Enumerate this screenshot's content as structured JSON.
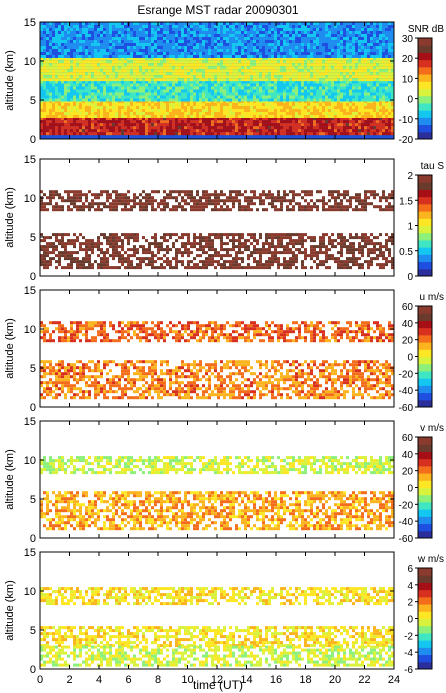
{
  "chart_data": {
    "type": "heatmap",
    "title": "Esrange MST radar 20090301",
    "xlabel": "time (UT)",
    "xlim": [
      0,
      24
    ],
    "x_ticks": [
      0,
      2,
      4,
      6,
      8,
      10,
      12,
      14,
      16,
      18,
      20,
      22,
      24
    ],
    "colormap": [
      "#2b2f9c",
      "#1f4fe0",
      "#1f8cf0",
      "#14c7f0",
      "#3fe6c4",
      "#8cf07a",
      "#d9f23c",
      "#fde725",
      "#fbb41e",
      "#f46d1b",
      "#d7301f",
      "#a50f15",
      "#6a3b2c",
      "#8b3a2e"
    ],
    "panels": [
      {
        "ylabel": "altitude (km)",
        "ylim": [
          0,
          15
        ],
        "y_ticks": [
          0,
          5,
          10,
          15
        ],
        "colorbar_label": "SNR dB",
        "clim": [
          -20,
          30
        ],
        "colorbar_ticks": [
          -20,
          -10,
          0,
          10,
          20,
          30
        ],
        "background": "#2150d8",
        "layers": [
          {
            "alt_lo": 0.5,
            "alt_hi": 2.8,
            "value": 20
          },
          {
            "alt_lo": 2.8,
            "alt_hi": 5.0,
            "value": 8
          },
          {
            "alt_lo": 5.0,
            "alt_hi": 7.5,
            "value": -5
          },
          {
            "alt_lo": 7.5,
            "alt_hi": 10.5,
            "value": 4
          },
          {
            "alt_lo": 10.5,
            "alt_hi": 15,
            "value": -12
          }
        ]
      },
      {
        "ylabel": "altitude (km)",
        "ylim": [
          0,
          15
        ],
        "y_ticks": [
          0,
          5,
          10,
          15
        ],
        "colorbar_label": "tau S",
        "clim": [
          0,
          2
        ],
        "colorbar_ticks": [
          0,
          0.5,
          1,
          1.5,
          2
        ],
        "background": "#ffffff",
        "layers": [
          {
            "alt_lo": 8.5,
            "alt_hi": 11.0,
            "value": 1.95
          },
          {
            "alt_lo": 1.0,
            "alt_hi": 5.5,
            "value": 1.95
          }
        ]
      },
      {
        "ylabel": "altitude (km)",
        "ylim": [
          0,
          15
        ],
        "y_ticks": [
          0,
          5,
          10,
          15
        ],
        "colorbar_label": "u m/s",
        "clim": [
          -60,
          60
        ],
        "colorbar_ticks": [
          -60,
          -40,
          -20,
          0,
          20,
          40,
          60
        ],
        "background": "#ffffff",
        "layers": [
          {
            "alt_lo": 8.5,
            "alt_hi": 11.0,
            "value": 25
          },
          {
            "alt_lo": 1.0,
            "alt_hi": 6.0,
            "value": 20
          }
        ]
      },
      {
        "ylabel": "altitude (km)",
        "ylim": [
          0,
          15
        ],
        "y_ticks": [
          0,
          5,
          10,
          15
        ],
        "colorbar_label": "v m/s",
        "clim": [
          -60,
          60
        ],
        "colorbar_ticks": [
          -60,
          -40,
          -20,
          0,
          20,
          40,
          60
        ],
        "background": "#ffffff",
        "layers": [
          {
            "alt_lo": 8.5,
            "alt_hi": 10.5,
            "value": -5
          },
          {
            "alt_lo": 1.0,
            "alt_hi": 6.0,
            "value": 15
          }
        ]
      },
      {
        "ylabel": "altitude (km)",
        "ylim": [
          0,
          15
        ],
        "y_ticks": [
          0,
          5,
          10,
          15
        ],
        "colorbar_label": "w m/s",
        "clim": [
          -6,
          6
        ],
        "colorbar_ticks": [
          -6,
          -4,
          -2,
          0,
          2,
          4,
          6
        ],
        "background": "#ffffff",
        "layers": [
          {
            "alt_lo": 8.5,
            "alt_hi": 10.5,
            "value": 0.5
          },
          {
            "alt_lo": 3.0,
            "alt_hi": 5.5,
            "value": 0.5
          },
          {
            "alt_lo": 0.5,
            "alt_hi": 3.0,
            "value": -0.5
          }
        ]
      }
    ]
  }
}
